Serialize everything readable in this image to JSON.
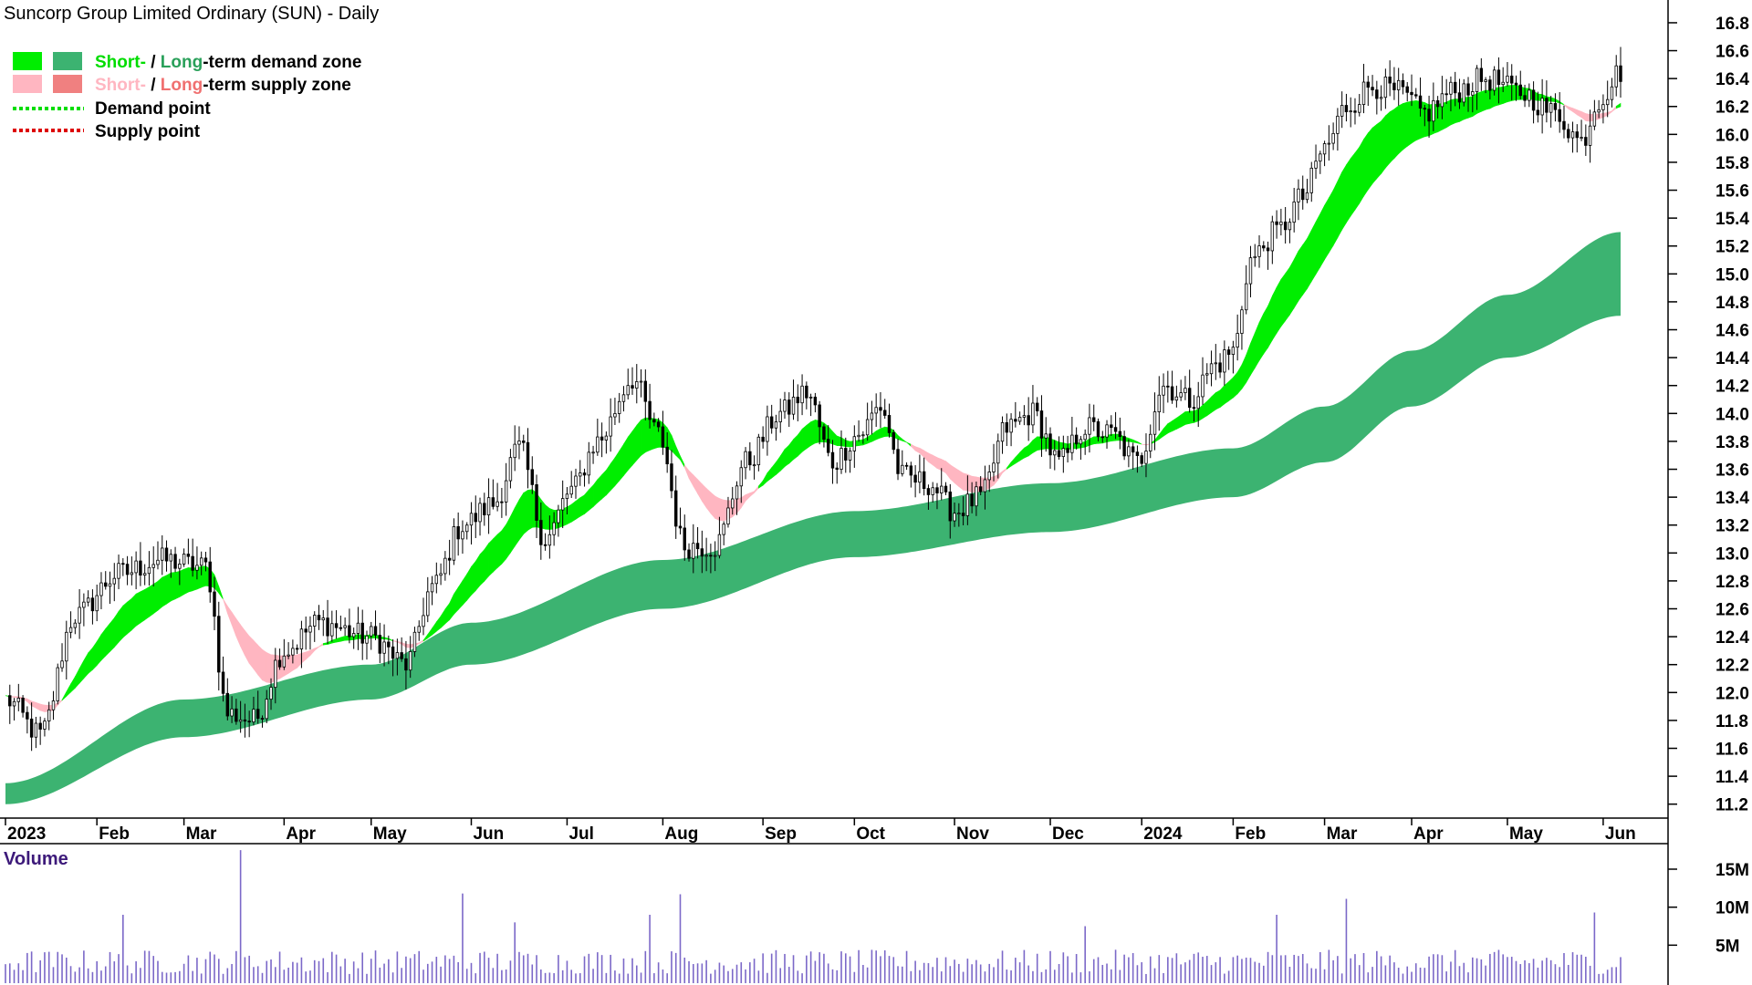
{
  "title": "Suncorp Group Limited Ordinary (SUN) - Daily",
  "legend": {
    "demand_zone": {
      "short": "Short-",
      "slash": " / ",
      "long": "Long",
      "suffix": "-term demand zone"
    },
    "supply_zone": {
      "short": "Short-",
      "slash": " / ",
      "long": "Long",
      "suffix": "-term supply zone"
    },
    "demand_point": "Demand point",
    "supply_point": "Supply point"
  },
  "colors": {
    "short_demand": "#00ee00",
    "long_demand": "#3cb371",
    "short_supply": "#ffb6c1",
    "long_supply": "#ff7f50",
    "demand_point": "#00dd00",
    "supply_point": "#dd0000",
    "volume": "#7b68c8",
    "axis": "#000000"
  },
  "volume_label": "Volume",
  "chart_data": [
    {
      "type": "candlestick",
      "title": "Suncorp Group Limited Ordinary (SUN) - Daily",
      "ylim": [
        11.1,
        16.95
      ],
      "yticks": [
        11.2,
        11.4,
        11.6,
        11.8,
        12.0,
        12.2,
        12.4,
        12.6,
        12.8,
        13.0,
        13.2,
        13.4,
        13.6,
        13.8,
        14.0,
        14.2,
        14.4,
        14.6,
        14.8,
        15.0,
        15.2,
        15.4,
        15.6,
        15.8,
        16.0,
        16.2,
        16.4,
        16.6,
        16.8
      ],
      "ytick_labels": [
        "11.2",
        "11.4",
        "11.6",
        "11.8",
        "12.0",
        "12.2",
        "12.4",
        "12.6",
        "12.8",
        "13.0",
        "13.2",
        "13.4",
        "13.6",
        "13.8",
        "14.0",
        "14.2",
        "14.4",
        "14.6",
        "14.8",
        "15.0",
        "15.2",
        "15.4",
        "15.6",
        "15.8",
        "16.0",
        "16.2",
        "16.4",
        "16.6",
        "16.8"
      ],
      "months": [
        "2023",
        "Feb",
        "Mar",
        "Apr",
        "May",
        "Jun",
        "Jul",
        "Aug",
        "Sep",
        "Oct",
        "Nov",
        "Dec",
        "2024",
        "Feb",
        "Mar",
        "Apr",
        "May",
        "Jun"
      ],
      "month_index": [
        0,
        21,
        41,
        64,
        84,
        107,
        129,
        151,
        174,
        195,
        218,
        240,
        261,
        282,
        303,
        323,
        345,
        367
      ],
      "n_bars": 372,
      "price_anchors": [
        {
          "i": 0,
          "v": 11.95
        },
        {
          "i": 8,
          "v": 11.7
        },
        {
          "i": 16,
          "v": 12.55
        },
        {
          "i": 26,
          "v": 12.85
        },
        {
          "i": 36,
          "v": 12.95
        },
        {
          "i": 46,
          "v": 12.9
        },
        {
          "i": 51,
          "v": 11.85
        },
        {
          "i": 57,
          "v": 11.8
        },
        {
          "i": 64,
          "v": 12.3
        },
        {
          "i": 72,
          "v": 12.5
        },
        {
          "i": 84,
          "v": 12.4
        },
        {
          "i": 92,
          "v": 12.2
        },
        {
          "i": 98,
          "v": 12.75
        },
        {
          "i": 105,
          "v": 13.2
        },
        {
          "i": 112,
          "v": 13.35
        },
        {
          "i": 118,
          "v": 13.75
        },
        {
          "i": 124,
          "v": 13.1
        },
        {
          "i": 130,
          "v": 13.45
        },
        {
          "i": 136,
          "v": 13.8
        },
        {
          "i": 144,
          "v": 14.25
        },
        {
          "i": 150,
          "v": 13.85
        },
        {
          "i": 156,
          "v": 13.05
        },
        {
          "i": 163,
          "v": 13.05
        },
        {
          "i": 170,
          "v": 13.65
        },
        {
          "i": 178,
          "v": 14.0
        },
        {
          "i": 184,
          "v": 14.15
        },
        {
          "i": 190,
          "v": 13.65
        },
        {
          "i": 196,
          "v": 13.85
        },
        {
          "i": 201,
          "v": 14.05
        },
        {
          "i": 206,
          "v": 13.55
        },
        {
          "i": 212,
          "v": 13.5
        },
        {
          "i": 218,
          "v": 13.3
        },
        {
          "i": 224,
          "v": 13.4
        },
        {
          "i": 230,
          "v": 13.9
        },
        {
          "i": 236,
          "v": 14.0
        },
        {
          "i": 242,
          "v": 13.65
        },
        {
          "i": 248,
          "v": 13.9
        },
        {
          "i": 254,
          "v": 13.85
        },
        {
          "i": 260,
          "v": 13.65
        },
        {
          "i": 266,
          "v": 14.2
        },
        {
          "i": 272,
          "v": 14.1
        },
        {
          "i": 278,
          "v": 14.35
        },
        {
          "i": 282,
          "v": 14.45
        },
        {
          "i": 286,
          "v": 15.1
        },
        {
          "i": 292,
          "v": 15.3
        },
        {
          "i": 298,
          "v": 15.55
        },
        {
          "i": 303,
          "v": 15.9
        },
        {
          "i": 308,
          "v": 16.2
        },
        {
          "i": 314,
          "v": 16.35
        },
        {
          "i": 320,
          "v": 16.3
        },
        {
          "i": 326,
          "v": 16.15
        },
        {
          "i": 332,
          "v": 16.3
        },
        {
          "i": 340,
          "v": 16.4
        },
        {
          "i": 348,
          "v": 16.3
        },
        {
          "i": 356,
          "v": 16.15
        },
        {
          "i": 362,
          "v": 15.95
        },
        {
          "i": 366,
          "v": 16.25
        },
        {
          "i": 371,
          "v": 16.45
        }
      ],
      "long_zone_upper": [
        {
          "i": 0,
          "v": 11.35
        },
        {
          "i": 41,
          "v": 11.95
        },
        {
          "i": 84,
          "v": 12.2
        },
        {
          "i": 107,
          "v": 12.5
        },
        {
          "i": 151,
          "v": 12.95
        },
        {
          "i": 195,
          "v": 13.3
        },
        {
          "i": 240,
          "v": 13.5
        },
        {
          "i": 282,
          "v": 13.75
        },
        {
          "i": 303,
          "v": 14.05
        },
        {
          "i": 323,
          "v": 14.45
        },
        {
          "i": 345,
          "v": 14.85
        },
        {
          "i": 371,
          "v": 15.3
        }
      ],
      "long_zone_lower": [
        {
          "i": 0,
          "v": 11.2
        },
        {
          "i": 41,
          "v": 11.68
        },
        {
          "i": 84,
          "v": 11.95
        },
        {
          "i": 107,
          "v": 12.2
        },
        {
          "i": 151,
          "v": 12.6
        },
        {
          "i": 195,
          "v": 12.97
        },
        {
          "i": 240,
          "v": 13.15
        },
        {
          "i": 282,
          "v": 13.4
        },
        {
          "i": 303,
          "v": 13.65
        },
        {
          "i": 323,
          "v": 14.05
        },
        {
          "i": 345,
          "v": 14.4
        },
        {
          "i": 371,
          "v": 14.7
        }
      ],
      "volume": {
        "ylim": [
          0,
          18000000
        ],
        "yticks": [
          5000000,
          10000000,
          15000000
        ],
        "ytick_labels": [
          "5M",
          "10M",
          "15M"
        ],
        "spikes": [
          {
            "i": 54,
            "v": 17500000
          },
          {
            "i": 27,
            "v": 9000000
          },
          {
            "i": 105,
            "v": 11800000
          },
          {
            "i": 117,
            "v": 8000000
          },
          {
            "i": 155,
            "v": 11700000
          },
          {
            "i": 148,
            "v": 9000000
          },
          {
            "i": 248,
            "v": 7500000
          },
          {
            "i": 292,
            "v": 9000000
          },
          {
            "i": 308,
            "v": 11100000
          },
          {
            "i": 365,
            "v": 9300000
          }
        ]
      }
    }
  ]
}
